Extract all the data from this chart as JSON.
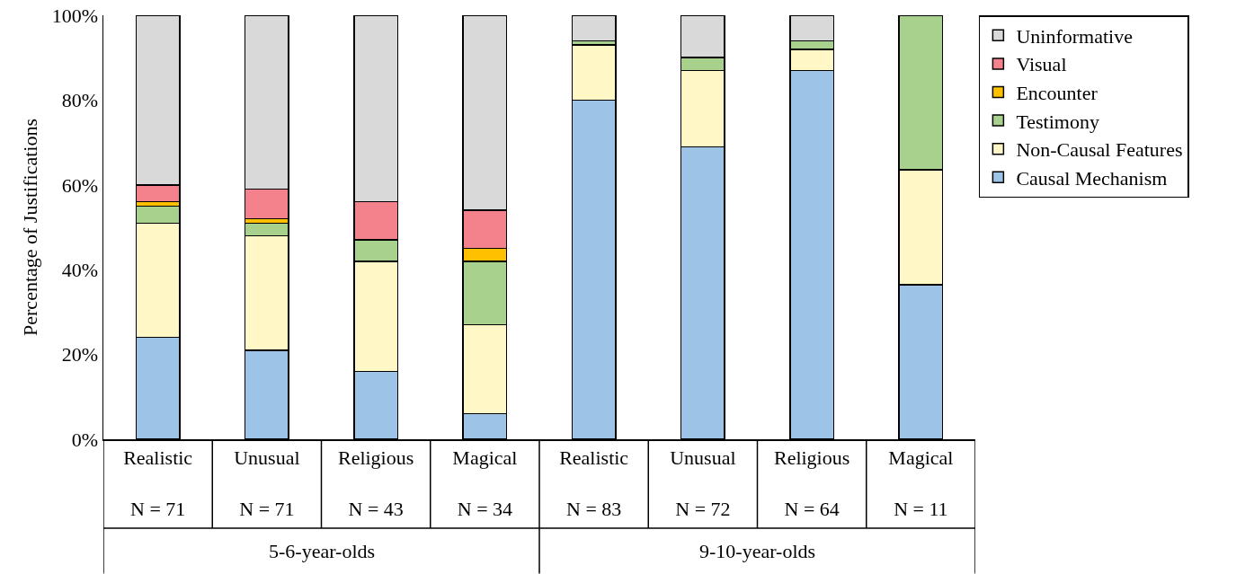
{
  "chart_data": {
    "type": "bar",
    "stacked": true,
    "ylabel": "Percentage of Justifications",
    "categories": [
      "Realistic\nN = 71",
      "Unusual\nN = 71",
      "Religious\nN = 43",
      "Magical\nN = 34",
      "Realistic\nN = 83",
      "Unusual\nN = 72",
      "Religious\nN = 64",
      "Magical\nN = 11"
    ],
    "annotations": [
      "5-6-year-olds",
      "9-10-year-olds"
    ],
    "series": [
      {
        "name": "Causal Mechanism",
        "color": "#9dc3e6",
        "values": [
          24,
          21,
          16,
          6,
          80,
          69,
          87,
          36.4
        ]
      },
      {
        "name": "Non-Causal Features",
        "color": "#fff7c6",
        "values": [
          27,
          27,
          26,
          21,
          13,
          18,
          5,
          27.2
        ]
      },
      {
        "name": "Testimony",
        "color": "#a9d18e",
        "values": [
          4,
          3,
          5,
          15,
          1,
          3,
          2,
          36.4
        ]
      },
      {
        "name": "Encounter",
        "color": "#ffc000",
        "values": [
          1,
          1,
          0,
          3,
          0,
          0,
          0,
          0
        ]
      },
      {
        "name": "Visual",
        "color": "#f4828c",
        "values": [
          4,
          7,
          9,
          9,
          0,
          0,
          0,
          0
        ]
      },
      {
        "name": "Uninformative",
        "color": "#d9d9d9",
        "values": [
          40,
          41,
          44,
          46,
          6,
          10,
          6,
          0
        ]
      }
    ],
    "ylim": [
      0,
      100
    ],
    "yticks": [
      {
        "value": 0,
        "label": "0%"
      },
      {
        "value": 20,
        "label": "20%"
      },
      {
        "value": 40,
        "label": "40%"
      },
      {
        "value": 60,
        "label": "60%"
      },
      {
        "value": 80,
        "label": "80%"
      },
      {
        "value": 100,
        "label": "100%"
      }
    ],
    "grid": false,
    "legend": "right"
  }
}
